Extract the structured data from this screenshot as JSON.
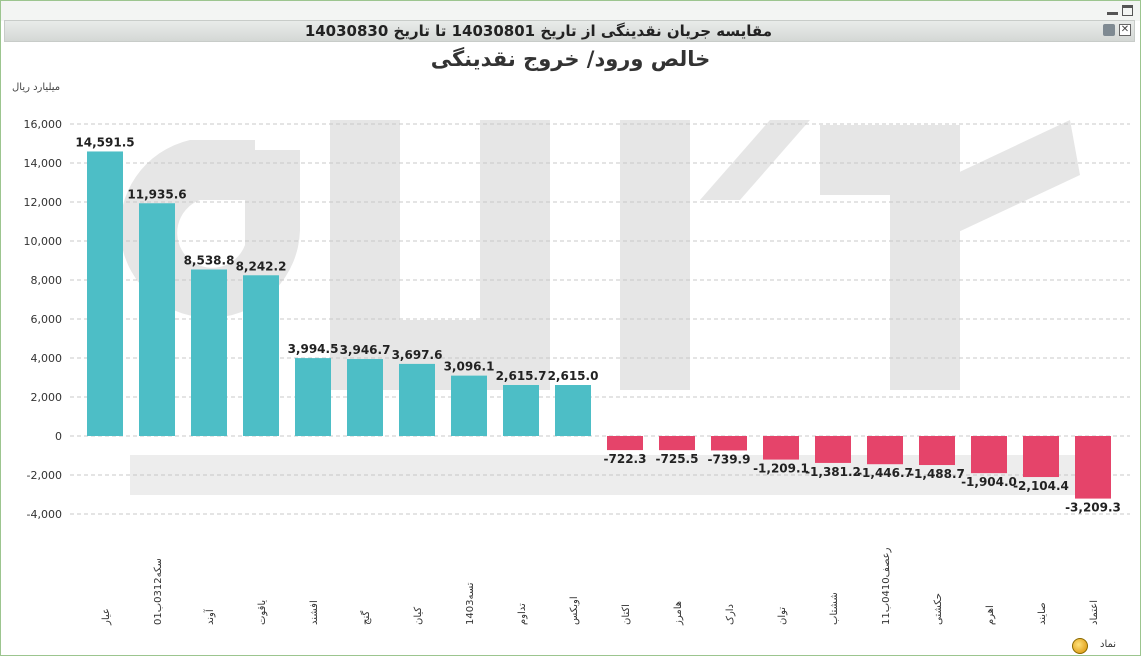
{
  "header": {
    "title": "مقایسه جریان نقدینگی از تاریخ 14030801 تا تاریخ 14030830"
  },
  "window_controls": [
    "minimize-icon",
    "maximize-icon"
  ],
  "toolbar": {
    "icons": [
      "print-icon",
      "export-icon"
    ]
  },
  "footer": {
    "label": "نماد",
    "icon": "refresh-icon"
  },
  "colors": {
    "positive": "#4dbec6",
    "negative": "#e5446a",
    "grid": "#c8c8c8",
    "watermark": "#e6e6e6"
  },
  "chart_data": {
    "type": "bar",
    "title": "خالص ورود/ خروج نقدینگی",
    "ylabel": "میلیارد ریال",
    "xlabel": "",
    "ylim": [
      -4000,
      16000
    ],
    "yticks": [
      16000,
      14000,
      12000,
      10000,
      8000,
      6000,
      4000,
      2000,
      0,
      -2000,
      -4000
    ],
    "ytick_labels": [
      "16,000",
      "14,000",
      "12,000",
      "10,000",
      "8,000",
      "6,000",
      "4,000",
      "2,000",
      "0",
      "-2,000",
      "-4,000"
    ],
    "grid": true,
    "categories": [
      "عیار",
      "سکه0312ب01",
      "آوند",
      "یاقوت",
      "افشند",
      "گنج",
      "کیان",
      "تسه1403",
      "تداوم",
      "اوبکس",
      "اکتان",
      "هامرز",
      "دارک",
      "توان",
      "ششتاب",
      "رعصف0410ب11",
      "حکشتی",
      "اهرم",
      "صایند",
      "اعتماد"
    ],
    "values": [
      14591.5,
      11935.6,
      8538.8,
      8242.2,
      3994.5,
      3946.7,
      3697.6,
      3096.1,
      2615.7,
      2615.0,
      -722.3,
      -725.5,
      -739.9,
      -1209.1,
      -1381.2,
      -1446.7,
      -1488.7,
      -1904.0,
      -2104.4,
      -3209.3
    ],
    "labels": [
      "14,591.5",
      "11,935.6",
      "8,538.8",
      "8,242.2",
      "3,994.5",
      "3,946.7",
      "3,697.6",
      "3,096.1",
      "2,615.7",
      "2,615.0",
      "-722.3",
      "-725.5",
      "-739.9",
      "-1,209.1",
      "-1,381.2",
      "-1,446.7",
      "-1,488.7",
      "-1,904.0",
      "-2,104.4",
      "-3,209.3"
    ]
  }
}
